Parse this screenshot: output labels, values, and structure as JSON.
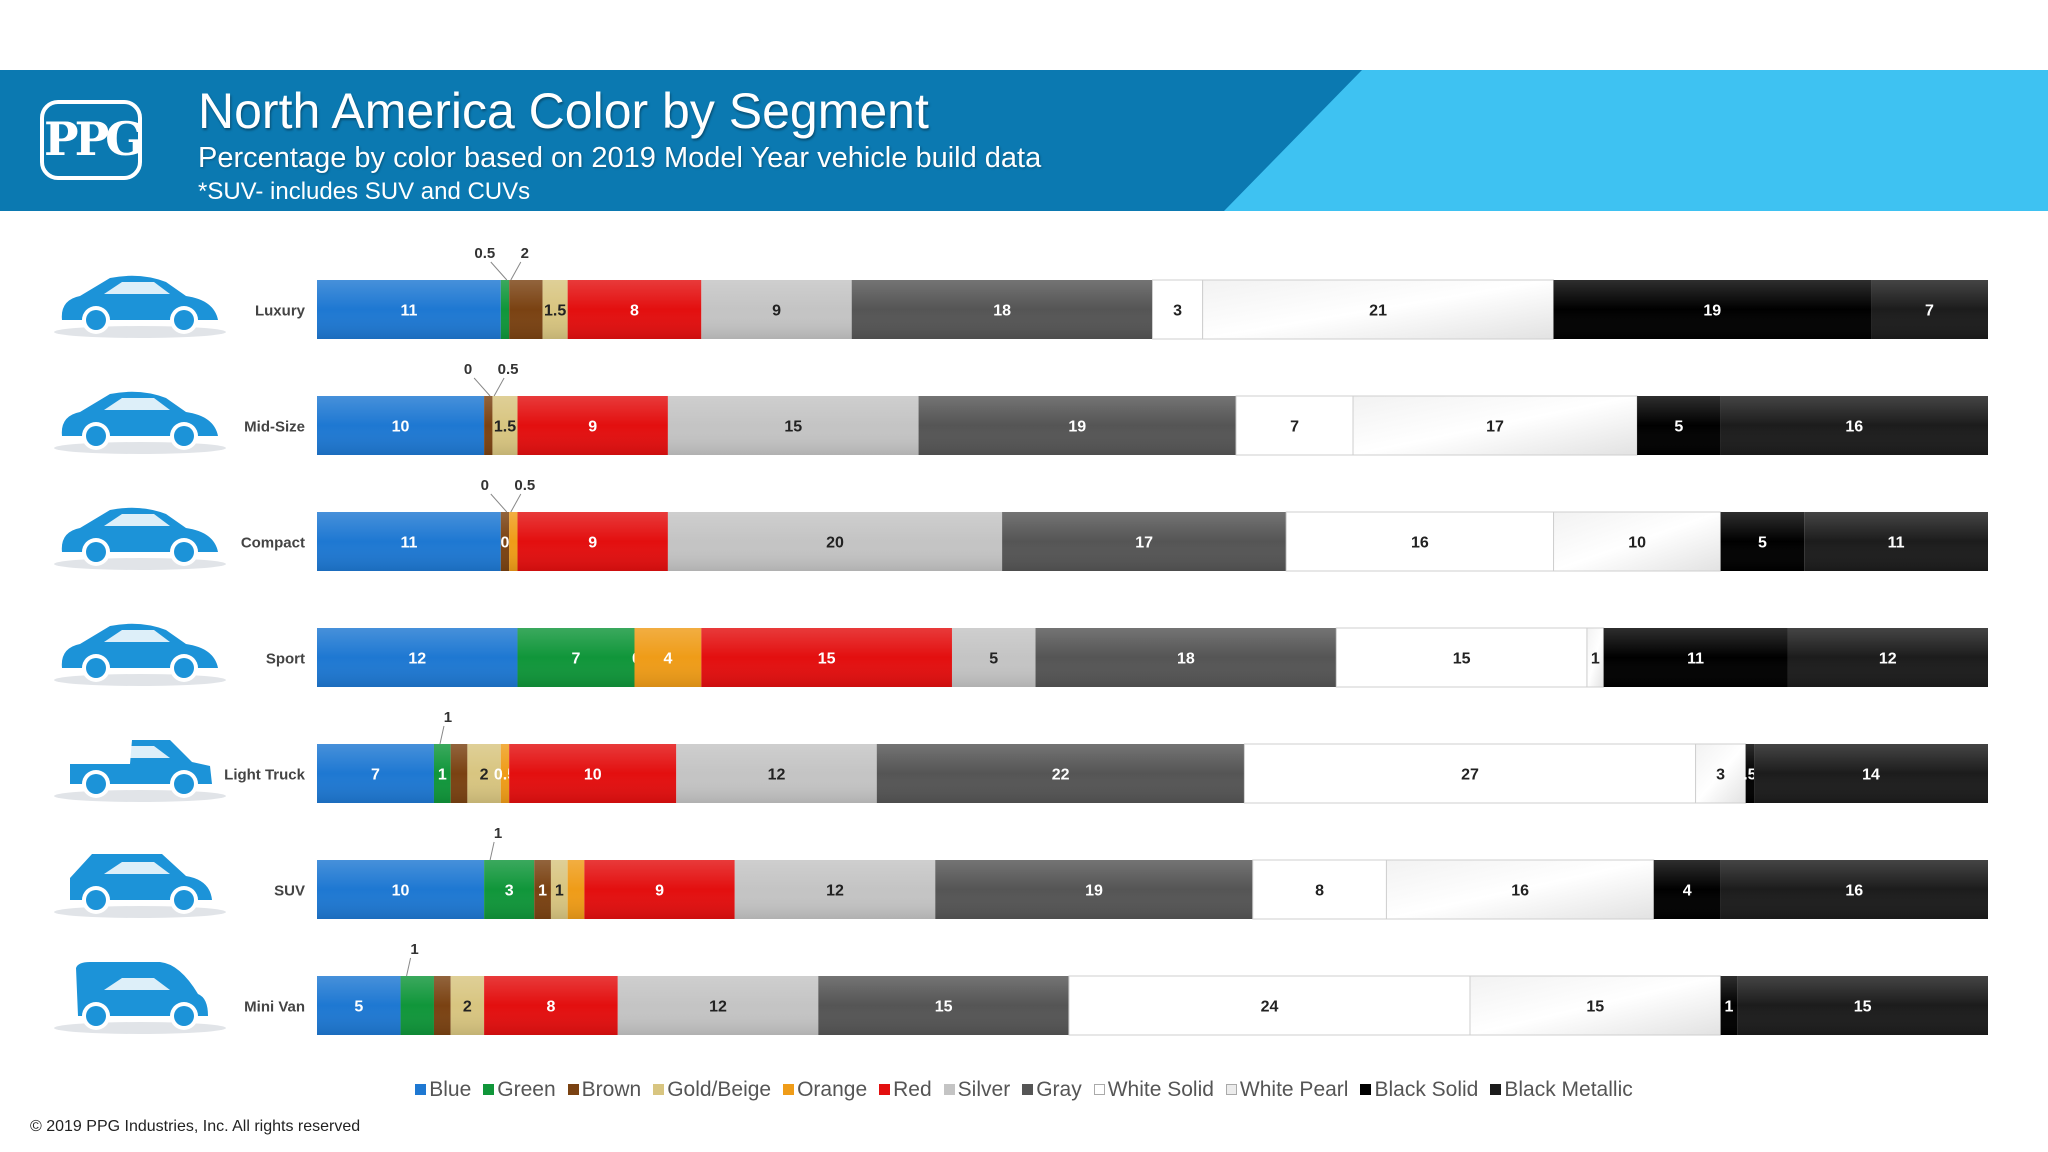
{
  "header": {
    "logo_text": "PPG",
    "title": "North America Color by Segment",
    "subtitle": "Percentage by color based on 2019 Model Year vehicle build data",
    "note": "*SUV- includes SUV and CUVs"
  },
  "footer": {
    "copyright": "© 2019 PPG Industries, Inc. All rights reserved"
  },
  "chart_data": {
    "type": "bar",
    "orientation": "horizontal",
    "stacked": true,
    "grid": false,
    "legend_position": "bottom",
    "categories": [
      "Luxury",
      "Mid-Size",
      "Compact",
      "Sport",
      "Light Truck",
      "SUV",
      "Mini Van"
    ],
    "series": [
      {
        "name": "Blue",
        "color": "#1e78d2",
        "values": [
          11,
          10,
          11,
          12,
          7,
          10,
          5
        ]
      },
      {
        "name": "Green",
        "color": "#10963a",
        "values": [
          0.5,
          0,
          0,
          7,
          1,
          3,
          2
        ]
      },
      {
        "name": "Brown",
        "color": "#7a4212",
        "values": [
          2,
          0.5,
          0.5,
          0,
          1,
          1,
          1
        ]
      },
      {
        "name": "Gold/Beige",
        "color": "#d8c580",
        "values": [
          1.5,
          1.5,
          0,
          0,
          2,
          1,
          2
        ]
      },
      {
        "name": "Orange",
        "color": "#ef9c18",
        "values": [
          0,
          0,
          0.5,
          4,
          0.5,
          1,
          0
        ]
      },
      {
        "name": "Red",
        "color": "#e30f0f",
        "values": [
          8,
          9,
          9,
          15,
          10,
          9,
          8
        ]
      },
      {
        "name": "Silver",
        "color": "#c4c4c4",
        "values": [
          9,
          15,
          20,
          5,
          12,
          12,
          12
        ]
      },
      {
        "name": "Gray",
        "color": "#555555",
        "values": [
          18,
          19,
          17,
          18,
          22,
          19,
          15
        ]
      },
      {
        "name": "White Solid",
        "color": "#ffffff",
        "values": [
          3,
          7,
          16,
          15,
          27,
          8,
          24
        ]
      },
      {
        "name": "White Pearl",
        "color": "#ececec",
        "values": [
          21,
          17,
          10,
          1,
          3,
          16,
          15
        ]
      },
      {
        "name": "Black Solid",
        "color": "#000000",
        "values": [
          19,
          5,
          5,
          11,
          0.5,
          4,
          1
        ]
      },
      {
        "name": "Black Metallic",
        "color": "#1c1c1c",
        "values": [
          7,
          16,
          11,
          12,
          14,
          16,
          15
        ]
      }
    ],
    "data_labels": [
      [
        "11",
        "",
        "",
        "1.5",
        "",
        "8",
        "9",
        "18",
        "3",
        "21",
        "19",
        "7"
      ],
      [
        "10",
        "",
        "",
        "1.5",
        "",
        "9",
        "15",
        "19",
        "7",
        "17",
        "5",
        "16"
      ],
      [
        "11",
        "",
        "0",
        "",
        "",
        "9",
        "20",
        "17",
        "16",
        "10",
        "5",
        "11"
      ],
      [
        "12",
        "7",
        "0",
        "",
        "4",
        "15",
        "5",
        "18",
        "15",
        "1",
        "11",
        "12"
      ],
      [
        "7",
        "1",
        "",
        "2",
        "0.5",
        "10",
        "12",
        "22",
        "27",
        "3",
        ".5",
        "14"
      ],
      [
        "10",
        "3",
        "1",
        "1",
        "",
        "9",
        "12",
        "19",
        "8",
        "16",
        "4",
        "16"
      ],
      [
        "5",
        "",
        "",
        "2",
        "",
        "8",
        "12",
        "15",
        "24",
        "15",
        "1",
        "15"
      ]
    ],
    "callouts": [
      {
        "row": 0,
        "labels": [
          "0.5",
          "2"
        ]
      },
      {
        "row": 1,
        "labels": [
          "0",
          "0.5"
        ]
      },
      {
        "row": 2,
        "labels": [
          "0",
          "0.5"
        ]
      },
      {
        "row": 4,
        "labels": [
          "1"
        ]
      },
      {
        "row": 5,
        "labels": [
          "1"
        ]
      },
      {
        "row": 6,
        "labels": [
          "1"
        ]
      }
    ]
  }
}
